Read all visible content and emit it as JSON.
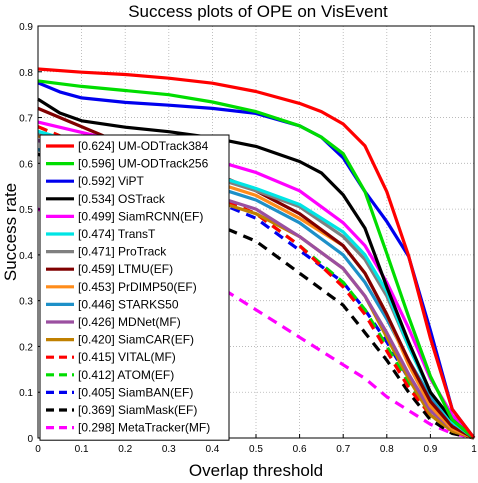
{
  "chart_data": {
    "type": "line",
    "title": "Success plots of OPE on VisEvent",
    "xlabel": "Overlap threshold",
    "ylabel": "Success rate",
    "xlim": [
      0,
      1
    ],
    "ylim": [
      0,
      0.9
    ],
    "xticks": [
      "0",
      "0.1",
      "0.2",
      "0.3",
      "0.4",
      "0.5",
      "0.6",
      "0.7",
      "0.8",
      "0.9",
      "1"
    ],
    "yticks": [
      "0",
      "0.1",
      "0.2",
      "0.3",
      "0.4",
      "0.5",
      "0.6",
      "0.7",
      "0.8",
      "0.9"
    ],
    "legend_position": "left",
    "series": [
      {
        "name": "[0.624] UM-ODTrack384",
        "color": "#ff0000",
        "dash": "solid",
        "points": [
          [
            0,
            0.806
          ],
          [
            0.1,
            0.799
          ],
          [
            0.2,
            0.794
          ],
          [
            0.3,
            0.786
          ],
          [
            0.4,
            0.775
          ],
          [
            0.5,
            0.757
          ],
          [
            0.6,
            0.731
          ],
          [
            0.65,
            0.713
          ],
          [
            0.7,
            0.686
          ],
          [
            0.75,
            0.638
          ],
          [
            0.8,
            0.538
          ],
          [
            0.85,
            0.398
          ],
          [
            0.9,
            0.218
          ],
          [
            0.95,
            0.063
          ],
          [
            1,
            0
          ]
        ]
      },
      {
        "name": "[0.596] UM-ODTrack256",
        "color": "#00dd00",
        "dash": "solid",
        "points": [
          [
            0,
            0.78
          ],
          [
            0.1,
            0.768
          ],
          [
            0.2,
            0.759
          ],
          [
            0.3,
            0.75
          ],
          [
            0.4,
            0.734
          ],
          [
            0.5,
            0.713
          ],
          [
            0.6,
            0.682
          ],
          [
            0.65,
            0.657
          ],
          [
            0.7,
            0.621
          ],
          [
            0.75,
            0.538
          ],
          [
            0.8,
            0.403
          ],
          [
            0.85,
            0.265
          ],
          [
            0.9,
            0.135
          ],
          [
            0.95,
            0.04
          ],
          [
            1,
            0
          ]
        ]
      },
      {
        "name": "[0.592] ViPT",
        "color": "#0000ee",
        "dash": "solid",
        "points": [
          [
            0,
            0.776
          ],
          [
            0.05,
            0.756
          ],
          [
            0.1,
            0.743
          ],
          [
            0.2,
            0.733
          ],
          [
            0.3,
            0.727
          ],
          [
            0.4,
            0.72
          ],
          [
            0.5,
            0.709
          ],
          [
            0.6,
            0.682
          ],
          [
            0.65,
            0.657
          ],
          [
            0.7,
            0.612
          ],
          [
            0.75,
            0.538
          ],
          [
            0.8,
            0.473
          ],
          [
            0.85,
            0.397
          ],
          [
            0.9,
            0.235
          ],
          [
            0.95,
            0.063
          ],
          [
            1,
            0
          ]
        ]
      },
      {
        "name": "[0.534] OSTrack",
        "color": "#000000",
        "dash": "solid",
        "points": [
          [
            0,
            0.74
          ],
          [
            0.05,
            0.71
          ],
          [
            0.1,
            0.693
          ],
          [
            0.2,
            0.679
          ],
          [
            0.3,
            0.669
          ],
          [
            0.4,
            0.656
          ],
          [
            0.5,
            0.637
          ],
          [
            0.6,
            0.604
          ],
          [
            0.65,
            0.579
          ],
          [
            0.7,
            0.531
          ],
          [
            0.75,
            0.458
          ],
          [
            0.8,
            0.33
          ],
          [
            0.85,
            0.21
          ],
          [
            0.9,
            0.1
          ],
          [
            0.95,
            0.04
          ],
          [
            1,
            0
          ]
        ]
      },
      {
        "name": "[0.499] SiamRCNN(EF)",
        "color": "#ff00ff",
        "dash": "solid",
        "points": [
          [
            0,
            0.69
          ],
          [
            0.2,
            0.645
          ],
          [
            0.4,
            0.608
          ],
          [
            0.5,
            0.58
          ],
          [
            0.6,
            0.54
          ],
          [
            0.7,
            0.47
          ],
          [
            0.75,
            0.42
          ],
          [
            0.8,
            0.34
          ],
          [
            0.85,
            0.24
          ],
          [
            0.9,
            0.13
          ],
          [
            0.95,
            0.05
          ],
          [
            1,
            0
          ]
        ]
      },
      {
        "name": "[0.474] TransT",
        "color": "#00e5e5",
        "dash": "solid",
        "points": [
          [
            0,
            0.67
          ],
          [
            0.2,
            0.615
          ],
          [
            0.4,
            0.575
          ],
          [
            0.5,
            0.545
          ],
          [
            0.6,
            0.51
          ],
          [
            0.7,
            0.45
          ],
          [
            0.75,
            0.4
          ],
          [
            0.8,
            0.32
          ],
          [
            0.85,
            0.2
          ],
          [
            0.9,
            0.1
          ],
          [
            0.95,
            0.035
          ],
          [
            1,
            0
          ]
        ]
      },
      {
        "name": "[0.471] ProTrack",
        "color": "#808080",
        "dash": "solid",
        "points": [
          [
            0,
            0.665
          ],
          [
            0.2,
            0.61
          ],
          [
            0.4,
            0.57
          ],
          [
            0.5,
            0.54
          ],
          [
            0.6,
            0.505
          ],
          [
            0.7,
            0.44
          ],
          [
            0.75,
            0.39
          ],
          [
            0.8,
            0.31
          ],
          [
            0.85,
            0.2
          ],
          [
            0.9,
            0.1
          ],
          [
            0.95,
            0.035
          ],
          [
            1,
            0
          ]
        ]
      },
      {
        "name": "[0.459] LTMU(EF)",
        "color": "#800000",
        "dash": "solid",
        "points": [
          [
            0,
            0.72
          ],
          [
            0.2,
            0.64
          ],
          [
            0.4,
            0.58
          ],
          [
            0.5,
            0.54
          ],
          [
            0.6,
            0.49
          ],
          [
            0.7,
            0.42
          ],
          [
            0.75,
            0.36
          ],
          [
            0.8,
            0.27
          ],
          [
            0.85,
            0.17
          ],
          [
            0.9,
            0.08
          ],
          [
            0.95,
            0.025
          ],
          [
            1,
            0
          ]
        ]
      },
      {
        "name": "[0.453] PrDIMP50(EF)",
        "color": "#ff8c1a",
        "dash": "solid",
        "points": [
          [
            0,
            0.66
          ],
          [
            0.2,
            0.6
          ],
          [
            0.4,
            0.56
          ],
          [
            0.5,
            0.53
          ],
          [
            0.6,
            0.48
          ],
          [
            0.7,
            0.42
          ],
          [
            0.75,
            0.36
          ],
          [
            0.8,
            0.27
          ],
          [
            0.85,
            0.16
          ],
          [
            0.9,
            0.07
          ],
          [
            0.95,
            0.02
          ],
          [
            1,
            0
          ]
        ]
      },
      {
        "name": "[0.446] STARKS50",
        "color": "#1e90c8",
        "dash": "solid",
        "points": [
          [
            0,
            0.63
          ],
          [
            0.2,
            0.58
          ],
          [
            0.4,
            0.55
          ],
          [
            0.5,
            0.52
          ],
          [
            0.6,
            0.47
          ],
          [
            0.7,
            0.4
          ],
          [
            0.75,
            0.34
          ],
          [
            0.8,
            0.26
          ],
          [
            0.85,
            0.17
          ],
          [
            0.9,
            0.09
          ],
          [
            0.95,
            0.03
          ],
          [
            1,
            0
          ]
        ]
      },
      {
        "name": "[0.426] MDNet(MF)",
        "color": "#9b4fa0",
        "dash": "solid",
        "points": [
          [
            0,
            0.65
          ],
          [
            0.2,
            0.58
          ],
          [
            0.4,
            0.53
          ],
          [
            0.5,
            0.5
          ],
          [
            0.6,
            0.44
          ],
          [
            0.7,
            0.37
          ],
          [
            0.75,
            0.31
          ],
          [
            0.8,
            0.23
          ],
          [
            0.85,
            0.14
          ],
          [
            0.9,
            0.06
          ],
          [
            0.95,
            0.02
          ],
          [
            1,
            0
          ]
        ]
      },
      {
        "name": "[0.420] SiamCAR(EF)",
        "color": "#c08000",
        "dash": "solid",
        "points": [
          [
            0,
            0.63
          ],
          [
            0.2,
            0.57
          ],
          [
            0.4,
            0.52
          ],
          [
            0.5,
            0.49
          ],
          [
            0.6,
            0.44
          ],
          [
            0.7,
            0.37
          ],
          [
            0.75,
            0.31
          ],
          [
            0.8,
            0.22
          ],
          [
            0.85,
            0.13
          ],
          [
            0.9,
            0.05
          ],
          [
            0.95,
            0.015
          ],
          [
            1,
            0
          ]
        ]
      },
      {
        "name": "[0.415] VITAL(MF)",
        "color": "#ff0000",
        "dash": "dashed",
        "points": [
          [
            0,
            0.68
          ],
          [
            0.2,
            0.6
          ],
          [
            0.4,
            0.53
          ],
          [
            0.5,
            0.49
          ],
          [
            0.6,
            0.42
          ],
          [
            0.7,
            0.33
          ],
          [
            0.75,
            0.27
          ],
          [
            0.8,
            0.19
          ],
          [
            0.85,
            0.11
          ],
          [
            0.9,
            0.05
          ],
          [
            0.95,
            0.015
          ],
          [
            1,
            0
          ]
        ]
      },
      {
        "name": "[0.412] ATOM(EF)",
        "color": "#00dd00",
        "dash": "dashed",
        "points": [
          [
            0,
            0.68
          ],
          [
            0.2,
            0.6
          ],
          [
            0.4,
            0.53
          ],
          [
            0.5,
            0.49
          ],
          [
            0.6,
            0.42
          ],
          [
            0.7,
            0.34
          ],
          [
            0.75,
            0.28
          ],
          [
            0.8,
            0.2
          ],
          [
            0.85,
            0.12
          ],
          [
            0.9,
            0.05
          ],
          [
            0.95,
            0.015
          ],
          [
            1,
            0
          ]
        ]
      },
      {
        "name": "[0.405] SiamBAN(EF)",
        "color": "#0000ee",
        "dash": "dashed",
        "points": [
          [
            0,
            0.65
          ],
          [
            0.2,
            0.58
          ],
          [
            0.4,
            0.52
          ],
          [
            0.5,
            0.48
          ],
          [
            0.6,
            0.41
          ],
          [
            0.7,
            0.34
          ],
          [
            0.75,
            0.28
          ],
          [
            0.8,
            0.21
          ],
          [
            0.85,
            0.13
          ],
          [
            0.9,
            0.06
          ],
          [
            0.95,
            0.02
          ],
          [
            1,
            0
          ]
        ]
      },
      {
        "name": "[0.369] SiamMask(EF)",
        "color": "#000000",
        "dash": "dashed",
        "points": [
          [
            0,
            0.62
          ],
          [
            0.2,
            0.54
          ],
          [
            0.4,
            0.47
          ],
          [
            0.5,
            0.43
          ],
          [
            0.6,
            0.36
          ],
          [
            0.7,
            0.29
          ],
          [
            0.75,
            0.23
          ],
          [
            0.8,
            0.17
          ],
          [
            0.85,
            0.1
          ],
          [
            0.9,
            0.04
          ],
          [
            0.95,
            0.01
          ],
          [
            1,
            0
          ]
        ]
      },
      {
        "name": "[0.298] MetaTracker(MF)",
        "color": "#ff00ff",
        "dash": "dashed",
        "points": [
          [
            0,
            0.5
          ],
          [
            0.2,
            0.42
          ],
          [
            0.4,
            0.34
          ],
          [
            0.5,
            0.28
          ],
          [
            0.6,
            0.22
          ],
          [
            0.7,
            0.16
          ],
          [
            0.75,
            0.13
          ],
          [
            0.8,
            0.09
          ],
          [
            0.85,
            0.06
          ],
          [
            0.9,
            0.03
          ],
          [
            0.95,
            0.01
          ],
          [
            1,
            0
          ]
        ]
      }
    ]
  }
}
